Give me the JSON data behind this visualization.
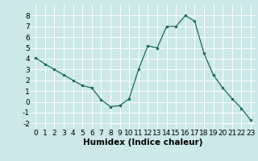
{
  "x": [
    0,
    1,
    2,
    3,
    4,
    5,
    6,
    7,
    8,
    9,
    10,
    11,
    12,
    13,
    14,
    15,
    16,
    17,
    18,
    19,
    20,
    21,
    22,
    23
  ],
  "y": [
    4.1,
    3.5,
    3.0,
    2.5,
    2.0,
    1.5,
    1.3,
    0.2,
    -0.45,
    -0.35,
    0.3,
    3.0,
    5.2,
    5.0,
    7.0,
    7.0,
    8.0,
    7.5,
    4.5,
    2.5,
    1.3,
    0.3,
    -0.6,
    -1.7
  ],
  "xlabel": "Humidex (Indice chaleur)",
  "xlim": [
    -0.5,
    23.5
  ],
  "ylim": [
    -2.5,
    9.0
  ],
  "yticks": [
    -2,
    -1,
    0,
    1,
    2,
    3,
    4,
    5,
    6,
    7,
    8
  ],
  "xticks": [
    0,
    1,
    2,
    3,
    4,
    5,
    6,
    7,
    8,
    9,
    10,
    11,
    12,
    13,
    14,
    15,
    16,
    17,
    18,
    19,
    20,
    21,
    22,
    23
  ],
  "line_color": "#1a6b5a",
  "marker_color": "#1a6b5a",
  "bg_color": "#cce8e8",
  "grid_color": "#ffffff",
  "tick_fontsize": 6.5,
  "xlabel_fontsize": 7.5
}
